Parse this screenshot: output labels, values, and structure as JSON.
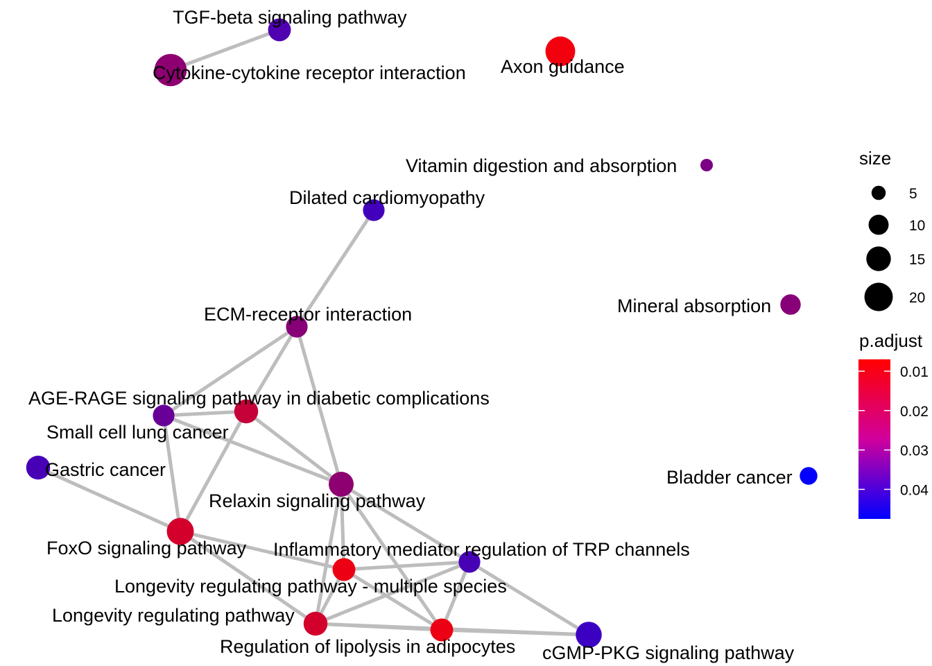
{
  "network": {
    "nodes": [
      {
        "id": "tgf",
        "label": "TGF-beta signaling pathway",
        "size": 10,
        "p_adjust": 0.035
      },
      {
        "id": "cytokine",
        "label": "Cytokine-cytokine receptor interaction",
        "size": 20,
        "p_adjust": 0.025
      },
      {
        "id": "axon",
        "label": "Axon guidance",
        "size": 17,
        "p_adjust": 0.009
      },
      {
        "id": "vitamin",
        "label": "Vitamin digestion and absorption",
        "size": 3,
        "p_adjust": 0.028
      },
      {
        "id": "dilated",
        "label": "Dilated cardiomyopathy",
        "size": 9,
        "p_adjust": 0.037
      },
      {
        "id": "mineral",
        "label": "Mineral absorption",
        "size": 8,
        "p_adjust": 0.026
      },
      {
        "id": "ecm",
        "label": "ECM-receptor interaction",
        "size": 9,
        "p_adjust": 0.026
      },
      {
        "id": "age",
        "label": "AGE-RAGE signaling pathway in diabetic complications",
        "size": 11,
        "p_adjust": 0.016
      },
      {
        "id": "smallcell",
        "label": "Small cell lung cancer",
        "size": 9,
        "p_adjust": 0.031
      },
      {
        "id": "gastric",
        "label": "Gastric cancer",
        "size": 11,
        "p_adjust": 0.036
      },
      {
        "id": "bladder",
        "label": "Bladder cancer",
        "size": 6,
        "p_adjust": 0.047
      },
      {
        "id": "relaxin",
        "label": "Relaxin signaling pathway",
        "size": 12,
        "p_adjust": 0.025
      },
      {
        "id": "foxo",
        "label": "FoxO signaling pathway",
        "size": 14,
        "p_adjust": 0.014
      },
      {
        "id": "inflam",
        "label": "Inflammatory mediator regulation of TRP channels",
        "size": 9,
        "p_adjust": 0.036
      },
      {
        "id": "longmulti",
        "label": "Longevity regulating pathway - multiple species",
        "size": 10,
        "p_adjust": 0.01
      },
      {
        "id": "longevity",
        "label": "Longevity regulating pathway",
        "size": 11,
        "p_adjust": 0.014
      },
      {
        "id": "lipolysis",
        "label": "Regulation of lipolysis in adipocytes",
        "size": 10,
        "p_adjust": 0.01
      },
      {
        "id": "cgmp",
        "label": "cGMP-PKG signaling pathway",
        "size": 13,
        "p_adjust": 0.038
      }
    ],
    "edges": [
      [
        "tgf",
        "cytokine"
      ],
      [
        "dilated",
        "ecm"
      ],
      [
        "ecm",
        "smallcell"
      ],
      [
        "ecm",
        "age"
      ],
      [
        "ecm",
        "relaxin"
      ],
      [
        "smallcell",
        "age"
      ],
      [
        "smallcell",
        "relaxin"
      ],
      [
        "smallcell",
        "foxo"
      ],
      [
        "age",
        "relaxin"
      ],
      [
        "age",
        "foxo"
      ],
      [
        "gastric",
        "foxo"
      ],
      [
        "relaxin",
        "longmulti"
      ],
      [
        "relaxin",
        "longevity"
      ],
      [
        "relaxin",
        "lipolysis"
      ],
      [
        "relaxin",
        "inflam"
      ],
      [
        "foxo",
        "longmulti"
      ],
      [
        "foxo",
        "longevity"
      ],
      [
        "longmulti",
        "inflam"
      ],
      [
        "longmulti",
        "longevity"
      ],
      [
        "longmulti",
        "lipolysis"
      ],
      [
        "inflam",
        "longevity"
      ],
      [
        "inflam",
        "lipolysis"
      ],
      [
        "inflam",
        "cgmp"
      ],
      [
        "longevity",
        "lipolysis"
      ],
      [
        "longevity",
        "cgmp"
      ],
      [
        "lipolysis",
        "cgmp"
      ]
    ]
  },
  "legend": {
    "size_title": "size",
    "size_entries": [
      {
        "value": 5,
        "label": "5"
      },
      {
        "value": 10,
        "label": "10"
      },
      {
        "value": 15,
        "label": "15"
      },
      {
        "value": 20,
        "label": "20"
      }
    ],
    "color_title": "p.adjust",
    "color_ticks": [
      {
        "value": 0.01,
        "label": "0.01"
      },
      {
        "value": 0.02,
        "label": "0.02"
      },
      {
        "value": 0.03,
        "label": "0.03"
      },
      {
        "value": 0.04,
        "label": "0.04"
      }
    ],
    "color_range": [
      0.007,
      0.0475
    ],
    "color_low": "#ff0000",
    "color_high": "#0000ff",
    "size_node_color": "#000000"
  },
  "colors": {
    "edge": "#bdbdbd",
    "background": "#ffffff"
  }
}
